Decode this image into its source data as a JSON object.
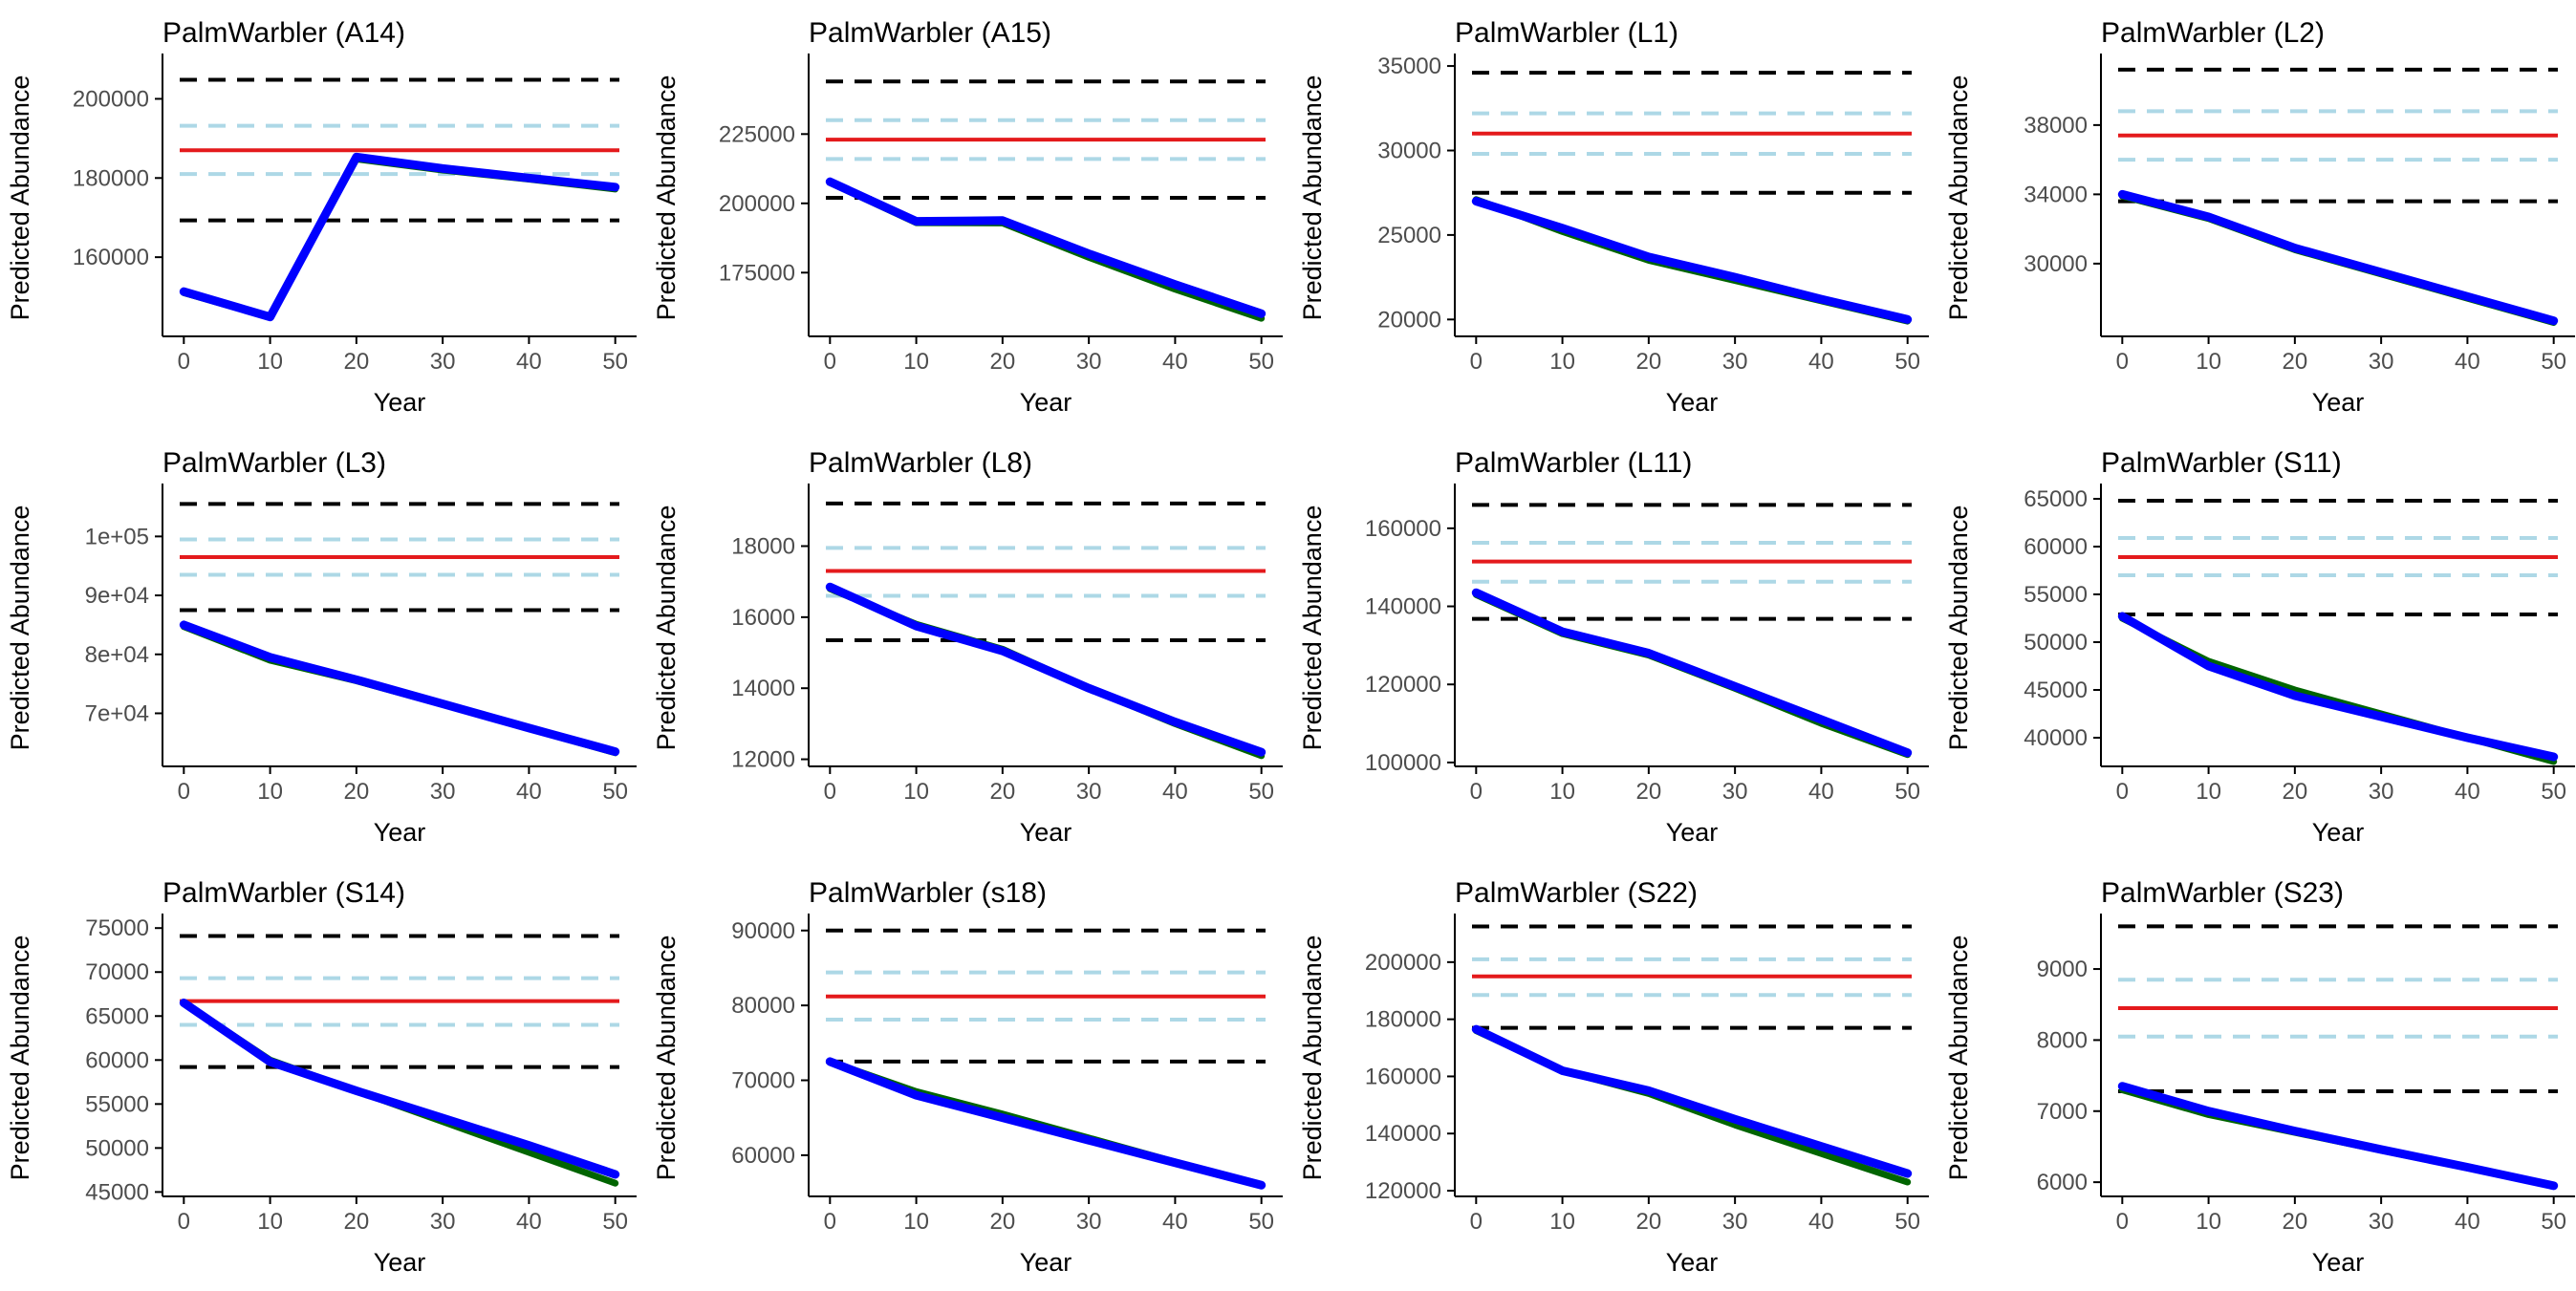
{
  "chart_data": [
    {
      "type": "line",
      "title": "PalmWarbler (A14)",
      "xlabel": "Year",
      "ylabel": "Predicted Abundance",
      "x": [
        0,
        10,
        20,
        30,
        40,
        50
      ],
      "ylim": [
        140000,
        210000
      ],
      "yticks": [
        160000,
        180000,
        200000
      ],
      "ytick_labels": [
        "160000",
        "180000",
        "200000"
      ],
      "xticks": [
        0,
        10,
        20,
        30,
        40,
        50
      ],
      "xtick_labels": [
        "0",
        "10",
        "20",
        "30",
        "40",
        "50"
      ],
      "series": [
        {
          "name": "green",
          "color": "#006400",
          "values": [
            151000,
            144800,
            184800,
            182000,
            179700,
            177200
          ]
        },
        {
          "name": "blue",
          "color": "#0000ff",
          "values": [
            151300,
            144900,
            185300,
            182400,
            180000,
            177700
          ]
        }
      ],
      "reference_lines": {
        "red": 187000,
        "lightblue": [
          181000,
          193200
        ],
        "black_dashed": [
          169300,
          204800
        ]
      }
    },
    {
      "type": "line",
      "title": "PalmWarbler (A15)",
      "xlabel": "Year",
      "ylabel": "Predicted Abundance",
      "x": [
        0,
        10,
        20,
        30,
        40,
        50
      ],
      "ylim": [
        152000,
        252000
      ],
      "yticks": [
        175000,
        200000,
        225000
      ],
      "ytick_labels": [
        "175000",
        "200000",
        "225000"
      ],
      "xticks": [
        0,
        10,
        20,
        30,
        40,
        50
      ],
      "xtick_labels": [
        "0",
        "10",
        "20",
        "30",
        "40",
        "50"
      ],
      "series": [
        {
          "name": "green",
          "color": "#006400",
          "values": [
            207500,
            193000,
            192900,
            180500,
            169000,
            158500
          ]
        },
        {
          "name": "blue",
          "color": "#0000ff",
          "values": [
            207800,
            193500,
            193800,
            181800,
            170700,
            160200
          ]
        }
      ],
      "reference_lines": {
        "red": 223000,
        "lightblue": [
          216000,
          230000
        ],
        "black_dashed": [
          202000,
          244000
        ]
      }
    },
    {
      "type": "line",
      "title": "PalmWarbler (L1)",
      "xlabel": "Year",
      "ylabel": "Predicted Abundance",
      "x": [
        0,
        10,
        20,
        30,
        40,
        50
      ],
      "ylim": [
        19000,
        35400
      ],
      "yticks": [
        20000,
        25000,
        30000,
        35000
      ],
      "ytick_labels": [
        "20000",
        "25000",
        "30000",
        "35000"
      ],
      "xticks": [
        0,
        10,
        20,
        30,
        40,
        50
      ],
      "xtick_labels": [
        "0",
        "10",
        "20",
        "30",
        "40",
        "50"
      ],
      "series": [
        {
          "name": "green",
          "color": "#006400",
          "values": [
            27100,
            25200,
            23500,
            22300,
            21100,
            19900
          ]
        },
        {
          "name": "blue",
          "color": "#0000ff",
          "values": [
            27000,
            25400,
            23700,
            22500,
            21200,
            20000
          ]
        }
      ],
      "reference_lines": {
        "red": 31000,
        "lightblue": [
          29800,
          32200
        ],
        "black_dashed": [
          27500,
          34600
        ]
      }
    },
    {
      "type": "line",
      "title": "PalmWarbler (L2)",
      "xlabel": "Year",
      "ylabel": "Predicted Abundance",
      "x": [
        0,
        10,
        20,
        30,
        40,
        50
      ],
      "ylim": [
        25800,
        41800
      ],
      "yticks": [
        30000,
        34000,
        38000
      ],
      "ytick_labels": [
        "30000",
        "34000",
        "38000"
      ],
      "xticks": [
        0,
        10,
        20,
        30,
        40,
        50
      ],
      "xtick_labels": [
        "0",
        "10",
        "20",
        "30",
        "40",
        "50"
      ],
      "series": [
        {
          "name": "green",
          "color": "#006400",
          "values": [
            33900,
            32600,
            30800,
            29400,
            28000,
            26600
          ]
        },
        {
          "name": "blue",
          "color": "#0000ff",
          "values": [
            34000,
            32700,
            30900,
            29500,
            28100,
            26700
          ]
        }
      ],
      "reference_lines": {
        "red": 37400,
        "lightblue": [
          36000,
          38800
        ],
        "black_dashed": [
          33600,
          41200
        ]
      }
    },
    {
      "type": "line",
      "title": "PalmWarbler (L3)",
      "xlabel": "Year",
      "ylabel": "Predicted Abundance",
      "x": [
        0,
        10,
        20,
        30,
        40,
        50
      ],
      "ylim": [
        61000,
        108000
      ],
      "yticks": [
        70000,
        80000,
        90000,
        100000
      ],
      "ytick_labels": [
        "7e+04",
        "8e+04",
        "9e+04",
        "1e+05"
      ],
      "xticks": [
        0,
        10,
        20,
        30,
        40,
        50
      ],
      "xtick_labels": [
        "0",
        "10",
        "20",
        "30",
        "40",
        "50"
      ],
      "series": [
        {
          "name": "green",
          "color": "#006400",
          "values": [
            84700,
            79000,
            75500,
            71500,
            67400,
            63300
          ]
        },
        {
          "name": "blue",
          "color": "#0000ff",
          "values": [
            85000,
            79500,
            75700,
            71600,
            67500,
            63500
          ]
        }
      ],
      "reference_lines": {
        "red": 96500,
        "lightblue": [
          93500,
          99500
        ],
        "black_dashed": [
          87500,
          105500
        ]
      }
    },
    {
      "type": "line",
      "title": "PalmWarbler (L8)",
      "xlabel": "Year",
      "ylabel": "Predicted Abundance",
      "x": [
        0,
        10,
        20,
        30,
        40,
        50
      ],
      "ylim": [
        11800,
        19600
      ],
      "yticks": [
        12000,
        14000,
        16000,
        18000
      ],
      "ytick_labels": [
        "12000",
        "14000",
        "16000",
        "18000"
      ],
      "xticks": [
        0,
        10,
        20,
        30,
        40,
        50
      ],
      "xtick_labels": [
        "0",
        "10",
        "20",
        "30",
        "40",
        "50"
      ],
      "series": [
        {
          "name": "green",
          "color": "#006400",
          "values": [
            16800,
            15800,
            15100,
            14000,
            13000,
            12100
          ]
        },
        {
          "name": "blue",
          "color": "#0000ff",
          "values": [
            16850,
            15750,
            15050,
            14000,
            13050,
            12200
          ]
        }
      ],
      "reference_lines": {
        "red": 17300,
        "lightblue": [
          16600,
          17950
        ],
        "black_dashed": [
          15350,
          19200
        ]
      }
    },
    {
      "type": "line",
      "title": "PalmWarbler (L11)",
      "xlabel": "Year",
      "ylabel": "Predicted Abundance",
      "x": [
        0,
        10,
        20,
        30,
        40,
        50
      ],
      "ylim": [
        99000,
        170000
      ],
      "yticks": [
        100000,
        120000,
        140000,
        160000
      ],
      "ytick_labels": [
        "100000",
        "120000",
        "140000",
        "160000"
      ],
      "xticks": [
        0,
        10,
        20,
        30,
        40,
        50
      ],
      "xtick_labels": [
        "0",
        "10",
        "20",
        "30",
        "40",
        "50"
      ],
      "series": [
        {
          "name": "green",
          "color": "#006400",
          "values": [
            143000,
            133000,
            127500,
            119000,
            110000,
            102000
          ]
        },
        {
          "name": "blue",
          "color": "#0000ff",
          "values": [
            143500,
            133500,
            128000,
            119500,
            111000,
            102500
          ]
        }
      ],
      "reference_lines": {
        "red": 151500,
        "lightblue": [
          146300,
          156300
        ],
        "black_dashed": [
          136800,
          166000
        ]
      }
    },
    {
      "type": "line",
      "title": "PalmWarbler (S11)",
      "xlabel": "Year",
      "ylabel": "Predicted Abundance",
      "x": [
        0,
        10,
        20,
        30,
        40,
        50
      ],
      "ylim": [
        37000,
        66000
      ],
      "yticks": [
        40000,
        45000,
        50000,
        55000,
        60000,
        65000
      ],
      "ytick_labels": [
        "40000",
        "45000",
        "50000",
        "55000",
        "60000",
        "65000"
      ],
      "xticks": [
        0,
        10,
        20,
        30,
        40,
        50
      ],
      "xtick_labels": [
        "0",
        "10",
        "20",
        "30",
        "40",
        "50"
      ],
      "series": [
        {
          "name": "green",
          "color": "#006400",
          "values": [
            52500,
            48000,
            45000,
            42500,
            40000,
            37500
          ]
        },
        {
          "name": "blue",
          "color": "#0000ff",
          "values": [
            52700,
            47500,
            44400,
            42200,
            40000,
            38000
          ]
        }
      ],
      "reference_lines": {
        "red": 58900,
        "lightblue": [
          57000,
          60900
        ],
        "black_dashed": [
          52900,
          64800
        ]
      }
    },
    {
      "type": "line",
      "title": "PalmWarbler (S14)",
      "xlabel": "Year",
      "ylabel": "Predicted Abundance",
      "x": [
        0,
        10,
        20,
        30,
        40,
        50
      ],
      "ylim": [
        44500,
        76000
      ],
      "yticks": [
        45000,
        50000,
        55000,
        60000,
        65000,
        70000,
        75000
      ],
      "ytick_labels": [
        "45000",
        "50000",
        "55000",
        "60000",
        "65000",
        "70000",
        "75000"
      ],
      "xticks": [
        0,
        10,
        20,
        30,
        40,
        50
      ],
      "xtick_labels": [
        "0",
        "10",
        "20",
        "30",
        "40",
        "50"
      ],
      "series": [
        {
          "name": "green",
          "color": "#006400",
          "values": [
            66500,
            60000,
            56500,
            53000,
            49500,
            46000
          ]
        },
        {
          "name": "blue",
          "color": "#0000ff",
          "values": [
            66500,
            59800,
            56500,
            53400,
            50300,
            47000
          ]
        }
      ],
      "reference_lines": {
        "red": 66700,
        "lightblue": [
          64000,
          69300
        ],
        "black_dashed": [
          59200,
          74100
        ]
      }
    },
    {
      "type": "line",
      "title": "PalmWarbler (s18)",
      "xlabel": "Year",
      "ylabel": "Predicted Abundance",
      "x": [
        0,
        10,
        20,
        30,
        40,
        50
      ],
      "ylim": [
        54500,
        91500
      ],
      "yticks": [
        60000,
        70000,
        80000,
        90000
      ],
      "ytick_labels": [
        "60000",
        "70000",
        "80000",
        "90000"
      ],
      "xticks": [
        0,
        10,
        20,
        30,
        40,
        50
      ],
      "xtick_labels": [
        "0",
        "10",
        "20",
        "30",
        "40",
        "50"
      ],
      "series": [
        {
          "name": "green",
          "color": "#006400",
          "values": [
            72500,
            68500,
            65500,
            62300,
            59100,
            56000
          ]
        },
        {
          "name": "blue",
          "color": "#0000ff",
          "values": [
            72500,
            68000,
            65000,
            62000,
            59000,
            56000
          ]
        }
      ],
      "reference_lines": {
        "red": 81200,
        "lightblue": [
          78100,
          84400
        ],
        "black_dashed": [
          72500,
          90000
        ]
      }
    },
    {
      "type": "line",
      "title": "PalmWarbler (S22)",
      "xlabel": "Year",
      "ylabel": "Predicted Abundance",
      "x": [
        0,
        10,
        20,
        30,
        40,
        50
      ],
      "ylim": [
        118000,
        215000
      ],
      "yticks": [
        120000,
        140000,
        160000,
        180000,
        200000
      ],
      "ytick_labels": [
        "120000",
        "140000",
        "160000",
        "180000",
        "200000"
      ],
      "xticks": [
        0,
        10,
        20,
        30,
        40,
        50
      ],
      "xtick_labels": [
        "0",
        "10",
        "20",
        "30",
        "40",
        "50"
      ],
      "series": [
        {
          "name": "green",
          "color": "#006400",
          "values": [
            176000,
            162000,
            154000,
            143000,
            133000,
            123000
          ]
        },
        {
          "name": "blue",
          "color": "#0000ff",
          "values": [
            176500,
            162000,
            155000,
            145000,
            135500,
            126000
          ]
        }
      ],
      "reference_lines": {
        "red": 195000,
        "lightblue": [
          188500,
          201000
        ],
        "black_dashed": [
          177000,
          212500
        ]
      }
    },
    {
      "type": "line",
      "title": "PalmWarbler (S23)",
      "xlabel": "Year",
      "ylabel": "Predicted Abundance",
      "x": [
        0,
        10,
        20,
        30,
        40,
        50
      ],
      "ylim": [
        5800,
        9700
      ],
      "yticks": [
        6000,
        7000,
        8000,
        9000
      ],
      "ytick_labels": [
        "6000",
        "7000",
        "8000",
        "9000"
      ],
      "xticks": [
        0,
        10,
        20,
        30,
        40,
        50
      ],
      "xtick_labels": [
        "0",
        "10",
        "20",
        "30",
        "40",
        "50"
      ],
      "series": [
        {
          "name": "green",
          "color": "#006400",
          "values": [
            7300,
            6950,
            6700,
            6450,
            6200,
            5950
          ]
        },
        {
          "name": "blue",
          "color": "#0000ff",
          "values": [
            7350,
            7000,
            6720,
            6460,
            6210,
            5950
          ]
        }
      ],
      "reference_lines": {
        "red": 8450,
        "lightblue": [
          8050,
          8850
        ],
        "black_dashed": [
          7280,
          9600
        ]
      }
    }
  ],
  "colors": {
    "red": "#e41a1c",
    "lightblue": "#add8e6",
    "black": "#000000",
    "tick_text": "#4d4d4d"
  }
}
